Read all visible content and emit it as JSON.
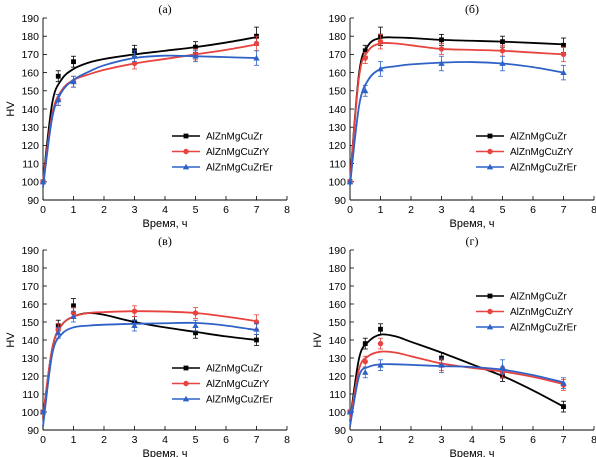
{
  "chart_data": [
    {
      "type": "line",
      "title": "(а)",
      "xlabel": "Время, ч",
      "ylabel": "HV",
      "xlim": [
        0,
        8
      ],
      "ylim": [
        90,
        190
      ],
      "xticks": [
        "0",
        "1",
        "2",
        "3",
        "4",
        "5",
        "6",
        "7",
        "8"
      ],
      "yticks": [
        "90",
        "100",
        "110",
        "120",
        "130",
        "140",
        "150",
        "160",
        "170",
        "180",
        "190"
      ],
      "legend_position": "bottom-right",
      "series": [
        {
          "name": "AlZnMgCuZr",
          "color": "#000000",
          "marker": "square",
          "x": [
            0,
            0.5,
            1,
            3,
            5,
            7
          ],
          "y": [
            100,
            158,
            166,
            172,
            174,
            180
          ],
          "err": [
            0,
            3,
            3,
            3,
            3,
            5
          ],
          "curve": [
            [
              0,
              100
            ],
            [
              0.3,
              143
            ],
            [
              0.6,
              156
            ],
            [
              1,
              162
            ],
            [
              1.5,
              165.5
            ],
            [
              2,
              167.5
            ],
            [
              3,
              170
            ],
            [
              4,
              172
            ],
            [
              5,
              174
            ],
            [
              6,
              176.5
            ],
            [
              7,
              179.5
            ]
          ]
        },
        {
          "name": "AlZnMgCuZrY",
          "color": "#e8433e",
          "marker": "circle",
          "x": [
            0,
            0.5,
            1,
            3,
            5,
            7
          ],
          "y": [
            100,
            145,
            155,
            165,
            170,
            176
          ],
          "err": [
            0,
            3,
            3,
            3,
            3,
            4
          ],
          "curve": [
            [
              0,
              100
            ],
            [
              0.3,
              137
            ],
            [
              0.6,
              150
            ],
            [
              1,
              156
            ],
            [
              1.5,
              159
            ],
            [
              2,
              161.5
            ],
            [
              3,
              165
            ],
            [
              4,
              167.5
            ],
            [
              5,
              170
            ],
            [
              6,
              172.5
            ],
            [
              7,
              175.5
            ]
          ]
        },
        {
          "name": "AlZnMgCuZrEr",
          "color": "#2f62c7",
          "marker": "triangle",
          "x": [
            0,
            0.5,
            1,
            3,
            5,
            7
          ],
          "y": [
            100,
            145,
            155,
            169,
            169,
            168
          ],
          "err": [
            0,
            3,
            3,
            3,
            3,
            4
          ],
          "curve": [
            [
              0,
              97
            ],
            [
              0.3,
              135
            ],
            [
              0.6,
              149
            ],
            [
              1,
              156
            ],
            [
              1.5,
              160.5
            ],
            [
              2,
              164
            ],
            [
              3,
              168
            ],
            [
              4,
              169.3
            ],
            [
              5,
              169
            ],
            [
              6,
              168.5
            ],
            [
              7,
              168
            ]
          ]
        }
      ]
    },
    {
      "type": "line",
      "title": "(б)",
      "xlabel": "Время, ч",
      "ylabel": "",
      "xlim": [
        0,
        8
      ],
      "ylim": [
        90,
        190
      ],
      "xticks": [
        "0",
        "1",
        "2",
        "3",
        "4",
        "5",
        "6",
        "7",
        "8"
      ],
      "yticks": [
        "90",
        "100",
        "110",
        "120",
        "130",
        "140",
        "150",
        "160",
        "170",
        "180",
        "190"
      ],
      "legend_position": "bottom-right",
      "series": [
        {
          "name": "AlZnMgCuZr",
          "color": "#000000",
          "marker": "square",
          "x": [
            0,
            0.5,
            1,
            3,
            5,
            7
          ],
          "y": [
            100,
            172,
            180,
            178,
            177,
            175
          ],
          "err": [
            0,
            3,
            5,
            3,
            3,
            4
          ],
          "curve": [
            [
              0,
              100
            ],
            [
              0.3,
              160
            ],
            [
              0.6,
              175
            ],
            [
              1,
              179
            ],
            [
              1.5,
              179.3
            ],
            [
              2,
              179
            ],
            [
              3,
              178
            ],
            [
              4,
              177.5
            ],
            [
              5,
              177
            ],
            [
              6,
              176.3
            ],
            [
              7,
              175.5
            ]
          ]
        },
        {
          "name": "AlZnMgCuZrY",
          "color": "#e8433e",
          "marker": "circle",
          "x": [
            0,
            0.5,
            1,
            3,
            5,
            7
          ],
          "y": [
            100,
            168,
            177,
            173,
            172,
            170
          ],
          "err": [
            0,
            3,
            4,
            3,
            3,
            4
          ],
          "curve": [
            [
              0,
              100
            ],
            [
              0.3,
              158
            ],
            [
              0.6,
              172
            ],
            [
              1,
              176
            ],
            [
              1.5,
              176
            ],
            [
              2,
              175
            ],
            [
              3,
              173
            ],
            [
              4,
              172.5
            ],
            [
              5,
              172
            ],
            [
              6,
              171
            ],
            [
              7,
              170
            ]
          ]
        },
        {
          "name": "AlZnMgCuZrEr",
          "color": "#2f62c7",
          "marker": "triangle",
          "x": [
            0,
            0.5,
            1,
            3,
            5,
            7
          ],
          "y": [
            100,
            150,
            162,
            165,
            165,
            160
          ],
          "err": [
            0,
            3,
            4,
            4,
            4,
            4
          ],
          "curve": [
            [
              0,
              98
            ],
            [
              0.3,
              142
            ],
            [
              0.6,
              156
            ],
            [
              1,
              162
            ],
            [
              1.5,
              163.5
            ],
            [
              2,
              164.5
            ],
            [
              3,
              165.5
            ],
            [
              4,
              165.8
            ],
            [
              5,
              165
            ],
            [
              6,
              163
            ],
            [
              7,
              160
            ]
          ]
        }
      ]
    },
    {
      "type": "line",
      "title": "(в)",
      "xlabel": "Время, ч",
      "ylabel": "HV",
      "xlim": [
        0,
        8
      ],
      "ylim": [
        90,
        190
      ],
      "xticks": [
        "0",
        "1",
        "2",
        "3",
        "4",
        "5",
        "6",
        "7",
        "8"
      ],
      "yticks": [
        "90",
        "100",
        "110",
        "120",
        "130",
        "140",
        "150",
        "160",
        "170",
        "180",
        "190"
      ],
      "legend_position": "bottom-right",
      "series": [
        {
          "name": "AlZnMgCuZr",
          "color": "#000000",
          "marker": "square",
          "x": [
            0,
            0.5,
            1,
            3,
            5,
            7
          ],
          "y": [
            100,
            148,
            159,
            150,
            144,
            140
          ],
          "err": [
            0,
            3,
            4,
            3,
            3,
            3
          ],
          "curve": [
            [
              0,
              97
            ],
            [
              0.3,
              135
            ],
            [
              0.6,
              148
            ],
            [
              1,
              153
            ],
            [
              1.5,
              155
            ],
            [
              2,
              154
            ],
            [
              3,
              150
            ],
            [
              4,
              147
            ],
            [
              5,
              144.5
            ],
            [
              6,
              142
            ],
            [
              7,
              140
            ]
          ]
        },
        {
          "name": "AlZnMgCuZrY",
          "color": "#e8433e",
          "marker": "circle",
          "x": [
            0,
            0.5,
            1,
            3,
            5,
            7
          ],
          "y": [
            100,
            146,
            155,
            156,
            155,
            150
          ],
          "err": [
            0,
            3,
            3,
            3,
            3,
            4
          ],
          "curve": [
            [
              0,
              97
            ],
            [
              0.3,
              135
            ],
            [
              0.6,
              148
            ],
            [
              1,
              153
            ],
            [
              1.5,
              155
            ],
            [
              2,
              155.5
            ],
            [
              3,
              156
            ],
            [
              4,
              155.8
            ],
            [
              5,
              155
            ],
            [
              6,
              153
            ],
            [
              7,
              150.5
            ]
          ]
        },
        {
          "name": "AlZnMgCuZrEr",
          "color": "#2f62c7",
          "marker": "triangle",
          "x": [
            0,
            0.5,
            1,
            3,
            5,
            7
          ],
          "y": [
            100,
            144,
            153,
            148,
            148,
            146
          ],
          "err": [
            0,
            3,
            3,
            3,
            3,
            3
          ],
          "curve": [
            [
              0,
              92
            ],
            [
              0.3,
              132
            ],
            [
              0.6,
              143
            ],
            [
              1,
              147
            ],
            [
              1.5,
              148
            ],
            [
              2,
              148.5
            ],
            [
              3,
              149
            ],
            [
              4,
              149.3
            ],
            [
              5,
              149.5
            ],
            [
              6,
              148
            ],
            [
              7,
              145.5
            ]
          ]
        }
      ]
    },
    {
      "type": "line",
      "title": "(г)",
      "xlabel": "Время, ч",
      "ylabel": "HV",
      "xlim": [
        0,
        8
      ],
      "ylim": [
        90,
        190
      ],
      "xticks": [
        "0",
        "1",
        "2",
        "3",
        "4",
        "5",
        "6",
        "7",
        "8"
      ],
      "yticks": [
        "90",
        "100",
        "110",
        "120",
        "130",
        "140",
        "150",
        "160",
        "170",
        "180",
        "190"
      ],
      "legend_position": "top-right",
      "series": [
        {
          "name": "AlZnMgCuZr",
          "color": "#000000",
          "marker": "square",
          "x": [
            0,
            0.5,
            1,
            3,
            5,
            7
          ],
          "y": [
            100,
            138,
            146,
            130,
            120,
            103
          ],
          "err": [
            0,
            3,
            3,
            3,
            3,
            3
          ],
          "curve": [
            [
              0,
              95
            ],
            [
              0.3,
              130
            ],
            [
              0.6,
              139
            ],
            [
              1,
              143
            ],
            [
              1.5,
              142
            ],
            [
              2,
              139
            ],
            [
              3,
              133
            ],
            [
              4,
              126.5
            ],
            [
              5,
              120
            ],
            [
              6,
              112
            ],
            [
              7,
              103
            ]
          ]
        },
        {
          "name": "AlZnMgCuZrY",
          "color": "#e8433e",
          "marker": "circle",
          "x": [
            0,
            0.5,
            1,
            3,
            5,
            7
          ],
          "y": [
            100,
            128,
            138,
            126,
            122,
            115
          ],
          "err": [
            0,
            3,
            3,
            3,
            3,
            3
          ],
          "curve": [
            [
              0,
              95
            ],
            [
              0.3,
              124
            ],
            [
              0.6,
              131
            ],
            [
              1,
              133.5
            ],
            [
              1.5,
              133
            ],
            [
              2,
              131
            ],
            [
              3,
              127
            ],
            [
              4,
              124.5
            ],
            [
              5,
              122.5
            ],
            [
              6,
              119.5
            ],
            [
              7,
              115.5
            ]
          ]
        },
        {
          "name": "AlZnMgCuZrEr",
          "color": "#2f62c7",
          "marker": "triangle",
          "x": [
            0,
            0.5,
            1,
            3,
            5,
            7
          ],
          "y": [
            100,
            122,
            126,
            126,
            125,
            116
          ],
          "err": [
            0,
            3,
            3,
            4,
            4,
            3
          ],
          "curve": [
            [
              0,
              92
            ],
            [
              0.3,
              120
            ],
            [
              0.6,
              125
            ],
            [
              1,
              126.5
            ],
            [
              1.5,
              126.5
            ],
            [
              2,
              126.2
            ],
            [
              3,
              125.5
            ],
            [
              4,
              125
            ],
            [
              5,
              123.5
            ],
            [
              6,
              120.5
            ],
            [
              7,
              116.5
            ]
          ]
        }
      ]
    }
  ]
}
